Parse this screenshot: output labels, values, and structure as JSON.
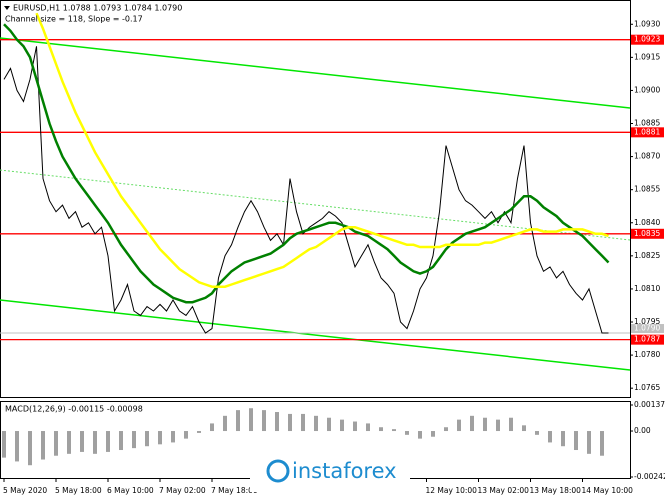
{
  "chart_data": [
    {
      "type": "line",
      "title": "EURUSD,H1 1.0788 1.0793 1.0784 1.0790",
      "subtitle": "Channel size = 118, Slope = -0.17",
      "categories": [
        "5 May 2020",
        null,
        null,
        null,
        null,
        null,
        null,
        null,
        "5 May 18:00",
        null,
        null,
        null,
        null,
        null,
        null,
        null,
        "6 May 10:00",
        null,
        null,
        null,
        null,
        null,
        null,
        null,
        "7 May 02:00",
        null,
        null,
        null,
        null,
        null,
        null,
        null,
        "7 May 18:00",
        null,
        null,
        null,
        null,
        null,
        null,
        null,
        null,
        null,
        null,
        null,
        null,
        null,
        null,
        null,
        null,
        null,
        null,
        null,
        null,
        null,
        null,
        null,
        null,
        null,
        null,
        null,
        null,
        null,
        null,
        null,
        null,
        "12 May 10:00",
        null,
        null,
        null,
        null,
        null,
        null,
        null,
        "13 May 02:00",
        null,
        null,
        null,
        null,
        null,
        null,
        null,
        "13 May 18:00",
        null,
        null,
        null,
        null,
        null,
        null,
        null,
        "14 May 10:00",
        null,
        null,
        null,
        null
      ],
      "series": [
        {
          "color": "#000000",
          "values": [
            1.0905,
            1.091,
            1.09,
            1.0895,
            1.0905,
            1.092,
            1.086,
            1.085,
            1.0845,
            1.0848,
            1.0842,
            1.0845,
            1.0838,
            1.084,
            1.0835,
            1.0838,
            1.0825,
            1.08,
            1.0805,
            1.0812,
            1.08,
            1.0798,
            1.0802,
            1.08,
            1.0803,
            1.08,
            1.0805,
            1.08,
            1.0798,
            1.0802,
            1.0795,
            1.079,
            1.0792,
            1.0815,
            1.0825,
            1.083,
            1.0838,
            1.0845,
            1.085,
            1.0845,
            1.0838,
            1.0832,
            1.0835,
            1.083,
            1.086,
            1.0845,
            1.0835,
            1.0838,
            1.084,
            1.0842,
            1.0845,
            1.0843,
            1.084,
            1.083,
            1.082,
            1.0825,
            1.083,
            1.0822,
            1.0815,
            1.0812,
            1.0808,
            1.0795,
            1.0792,
            1.08,
            1.081,
            1.0815,
            1.0825,
            1.0845,
            1.0875,
            1.0865,
            1.0855,
            1.085,
            1.0848,
            1.0845,
            1.0842,
            1.0845,
            1.084,
            1.0845,
            1.084,
            1.086,
            1.0875,
            1.084,
            1.0825,
            1.0818,
            1.082,
            1.0815,
            1.0818,
            1.0812,
            1.0808,
            1.0805,
            1.081,
            1.08,
            1.079,
            1.079
          ]
        },
        {
          "color": "#008000",
          "values": [
            1.093,
            1.0927,
            1.0923,
            1.092,
            1.0915,
            1.0905,
            1.0895,
            1.0885,
            1.0877,
            1.087,
            1.0865,
            1.086,
            1.0856,
            1.0852,
            1.0848,
            1.0844,
            1.084,
            1.0835,
            1.083,
            1.0826,
            1.0822,
            1.0818,
            1.0815,
            1.0812,
            1.081,
            1.0808,
            1.0806,
            1.0805,
            1.0804,
            1.0804,
            1.0805,
            1.0806,
            1.0808,
            1.0812,
            1.0815,
            1.0818,
            1.082,
            1.0822,
            1.0823,
            1.0824,
            1.0825,
            1.0826,
            1.0828,
            1.083,
            1.0833,
            1.0835,
            1.0836,
            1.0837,
            1.0838,
            1.0839,
            1.084,
            1.084,
            1.0839,
            1.0838,
            1.0836,
            1.0835,
            1.0834,
            1.0832,
            1.083,
            1.0828,
            1.0825,
            1.0822,
            1.082,
            1.0818,
            1.0817,
            1.0818,
            1.082,
            1.0824,
            1.0828,
            1.0831,
            1.0833,
            1.0835,
            1.0836,
            1.0837,
            1.0838,
            1.084,
            1.0842,
            1.0844,
            1.0846,
            1.0849,
            1.0852,
            1.0852,
            1.085,
            1.0847,
            1.0845,
            1.0843,
            1.084,
            1.0838,
            1.0836,
            1.0834,
            1.0831,
            1.0828,
            1.0825,
            1.0822
          ]
        },
        {
          "color": "#ffff00",
          "values": [
            null,
            null,
            null,
            null,
            null,
            1.0935,
            1.0928,
            1.092,
            1.0912,
            1.0904,
            1.0897,
            1.089,
            1.0884,
            1.0878,
            1.0872,
            1.0867,
            1.0862,
            1.0857,
            1.0852,
            1.0848,
            1.0844,
            1.084,
            1.0836,
            1.0832,
            1.0828,
            1.0825,
            1.0822,
            1.0819,
            1.0817,
            1.0815,
            1.0813,
            1.0812,
            1.0811,
            1.0811,
            1.0811,
            1.0812,
            1.0813,
            1.0814,
            1.0815,
            1.0816,
            1.0817,
            1.0818,
            1.0819,
            1.082,
            1.0822,
            1.0824,
            1.0826,
            1.0828,
            1.0829,
            1.0831,
            1.0833,
            1.0835,
            1.0837,
            1.0838,
            1.0838,
            1.0837,
            1.0836,
            1.0835,
            1.0834,
            1.0833,
            1.0832,
            1.0831,
            1.083,
            1.083,
            1.0829,
            1.0829,
            1.0829,
            1.0829,
            1.083,
            1.083,
            1.083,
            1.083,
            1.083,
            1.083,
            1.0831,
            1.0831,
            1.0832,
            1.0833,
            1.0834,
            1.0835,
            1.0836,
            1.0837,
            1.0837,
            1.0836,
            1.0836,
            1.0836,
            1.0837,
            1.0837,
            1.0837,
            1.0837,
            1.0836,
            1.0835,
            1.0835,
            1.0834
          ]
        }
      ],
      "ylim": [
        1.0761,
        1.0941
      ],
      "yticks": [
        {
          "value": 1.093,
          "label": "1.0930"
        },
        {
          "value": 1.0915,
          "label": "1.0915"
        },
        {
          "value": 1.09,
          "label": "1.0900"
        },
        {
          "value": 1.0885,
          "label": "1.0885"
        },
        {
          "value": 1.087,
          "label": "1.0870"
        },
        {
          "value": 1.0855,
          "label": "1.0855"
        },
        {
          "value": 1.084,
          "label": "1.0840"
        },
        {
          "value": 1.0825,
          "label": "1.0825"
        },
        {
          "value": 1.081,
          "label": "1.0810"
        },
        {
          "value": 1.0795,
          "label": "1.0795"
        },
        {
          "value": 1.078,
          "label": "1.0780"
        },
        {
          "value": 1.0765,
          "label": "1.0765"
        }
      ],
      "levels": [
        {
          "value": 1.0923,
          "label": "1.0923"
        },
        {
          "value": 1.0881,
          "label": "1.0881"
        },
        {
          "value": 1.0835,
          "label": "1.0835"
        },
        {
          "value": 1.0787,
          "label": "1.0787"
        }
      ],
      "level_color": "#ff0000",
      "current_price": {
        "value": 1.079,
        "label": "1.0790"
      },
      "watermark": "instaforex"
    },
    {
      "type": "bar",
      "title": "MACD(12,26,9) -0.00115 -0.00098",
      "color": "#a0a0a0",
      "values": [
        -0.0014,
        -0.0016,
        -0.0018,
        -0.0015,
        -0.0013,
        -0.0012,
        -0.0011,
        -0.0012,
        -0.0011,
        -0.001,
        -0.0009,
        -0.0008,
        -0.0007,
        -0.0006,
        -0.0004,
        -0.0001,
        0.0004,
        0.0008,
        0.0011,
        0.0012,
        0.0011,
        0.001,
        0.0009,
        0.0009,
        0.0008,
        0.0007,
        0.0006,
        0.0005,
        0.0004,
        0.0002,
        0.0001,
        -0.0002,
        -0.0004,
        -0.0003,
        0.0002,
        0.0006,
        0.0008,
        0.0007,
        0.0006,
        0.0007,
        0.0003,
        -0.0002,
        -0.0006,
        -0.0008,
        -0.001,
        -0.0012,
        -0.0013
      ],
      "ylim": [
        -0.00242,
        0.00137
      ],
      "yticks": [
        0.00137,
        {
          "value": 0,
          "label": "0.00"
        },
        -0.00242
      ]
    }
  ]
}
